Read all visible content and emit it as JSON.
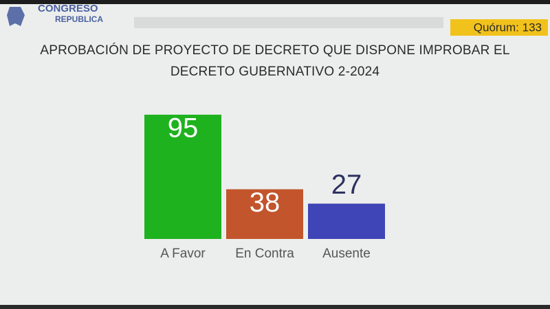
{
  "header": {
    "logo_line1": "CONGRESO",
    "logo_line2": "REPUBLICA",
    "quorum": "Quórum: 133"
  },
  "chart_data": {
    "type": "bar",
    "title": "APROBACIÓN DE PROYECTO DE DECRETO QUE DISPONE IMPROBAR EL DECRETO GUBERNATIVO 2-2024",
    "categories": [
      "A Favor",
      "En Contra",
      "Ausente"
    ],
    "values": [
      95,
      38,
      27
    ],
    "colors": [
      "#1fb21f",
      "#c2552c",
      "#3f44b6"
    ]
  }
}
